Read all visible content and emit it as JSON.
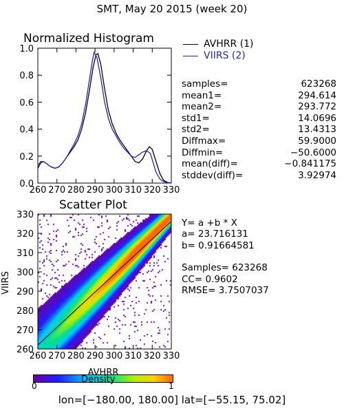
{
  "title": "SMT,  May 20 2015 (week 20)",
  "footer": "lon=[−180.00, 180.00] lat=[−55.15, 75.02]",
  "colors": {
    "avhrr": "#000000",
    "viirs": "#2222cc"
  },
  "histogram_legend": [
    {
      "label": "AVHRR (1)",
      "color": "#000000"
    },
    {
      "label": "VIIRS (2)",
      "color": "#2222cc"
    }
  ],
  "stats": [
    {
      "label": "samples=",
      "value": "623268"
    },
    {
      "label": "mean1=",
      "value": "294.614"
    },
    {
      "label": "mean2=",
      "value": "293.772"
    },
    {
      "label": "std1=",
      "value": "14.0696"
    },
    {
      "label": "std2=",
      "value": "13.4313"
    },
    {
      "label": "Diffmax=",
      "value": "59.9000"
    },
    {
      "label": "Diffmin=",
      "value": "−50.6000"
    },
    {
      "label": "mean(diff)=",
      "value": "−0.841175"
    },
    {
      "label": "stddev(diff)=",
      "value": "3.92974"
    }
  ],
  "fit": {
    "equation": "Y= a +b * X",
    "a": "a= 23.716131",
    "b": "b= 0.91664581",
    "samples": "Samples= 623268",
    "cc": "CC=  0.9602",
    "rmse": "RMSE= 3.7507037"
  },
  "colorbar": {
    "label": "Density",
    "min_label": "0",
    "max_label": "1"
  },
  "chart_data": [
    {
      "type": "line",
      "title": "Normalized Histogram",
      "xlabel": "",
      "ylabel": "",
      "xlim": [
        260,
        330
      ],
      "ylim": [
        0,
        1
      ],
      "x_ticks": [
        260,
        270,
        280,
        290,
        300,
        310,
        320,
        330
      ],
      "y_ticks": [
        "0.0",
        "0.2",
        "0.4",
        "0.6",
        "0.8",
        "1.0"
      ],
      "grid": false,
      "legend_position": "outside-right",
      "series": [
        {
          "name": "AVHRR (1)",
          "color": "#000000",
          "x": [
            260,
            261.5,
            263,
            265,
            267,
            269,
            271,
            273,
            275,
            277,
            279,
            281,
            283,
            285,
            287,
            289,
            290.5,
            291.5,
            293,
            295,
            297,
            299,
            301,
            303,
            305,
            307,
            309,
            311,
            313,
            315,
            317,
            318.5,
            320,
            322,
            324,
            326,
            328,
            330
          ],
          "y": [
            0.11,
            0.15,
            0.16,
            0.14,
            0.12,
            0.11,
            0.12,
            0.15,
            0.19,
            0.23,
            0.27,
            0.32,
            0.4,
            0.52,
            0.68,
            0.86,
            0.95,
            0.96,
            0.88,
            0.7,
            0.54,
            0.44,
            0.37,
            0.32,
            0.28,
            0.24,
            0.2,
            0.16,
            0.15,
            0.18,
            0.24,
            0.27,
            0.25,
            0.16,
            0.07,
            0.02,
            0.005,
            0.0
          ]
        },
        {
          "name": "VIIRS (2)",
          "color": "#2222cc",
          "x": [
            260,
            261.5,
            263,
            265,
            267,
            269,
            271,
            273,
            275,
            277,
            279,
            281,
            283,
            285,
            287,
            288.5,
            289.5,
            291,
            293,
            295,
            297,
            299,
            301,
            303,
            305,
            307,
            309,
            311,
            313,
            315,
            317,
            319,
            320.5,
            322,
            324,
            326,
            328,
            330
          ],
          "y": [
            0.13,
            0.16,
            0.16,
            0.14,
            0.12,
            0.11,
            0.12,
            0.15,
            0.19,
            0.24,
            0.29,
            0.35,
            0.44,
            0.58,
            0.76,
            0.9,
            0.97,
            0.93,
            0.78,
            0.6,
            0.48,
            0.4,
            0.35,
            0.3,
            0.26,
            0.23,
            0.2,
            0.19,
            0.21,
            0.23,
            0.24,
            0.22,
            0.15,
            0.08,
            0.03,
            0.01,
            0.002,
            0.0
          ]
        }
      ]
    },
    {
      "type": "heatmap",
      "title": "Scatter Plot",
      "xlabel": "AVHRR",
      "ylabel": "VIIRS",
      "xlim": [
        260,
        330
      ],
      "ylim": [
        260,
        330
      ],
      "x_ticks": [
        260,
        270,
        280,
        290,
        300,
        310,
        320,
        330
      ],
      "y_ticks": [
        260,
        270,
        280,
        290,
        300,
        310,
        320,
        330
      ],
      "fit_line": {
        "a": 23.716131,
        "b": 0.91664581
      },
      "colorscale": [
        "#6a00a8",
        "#2020ff",
        "#00c8ff",
        "#00e090",
        "#b0f000",
        "#ffd000",
        "#ff6a00"
      ],
      "colorbar_range": [
        0,
        1
      ]
    }
  ]
}
